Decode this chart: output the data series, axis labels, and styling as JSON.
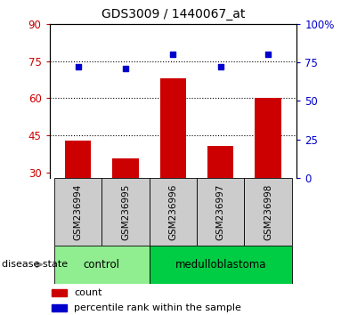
{
  "title": "GDS3009 / 1440067_at",
  "samples": [
    "GSM236994",
    "GSM236995",
    "GSM236996",
    "GSM236997",
    "GSM236998"
  ],
  "bar_values": [
    43,
    36,
    68,
    41,
    60
  ],
  "scatter_values": [
    72,
    71,
    80,
    72,
    80
  ],
  "bar_color": "#cc0000",
  "scatter_color": "#0000cc",
  "ylim_left": [
    28,
    90
  ],
  "ylim_right": [
    0,
    100
  ],
  "yticks_left": [
    30,
    45,
    60,
    75,
    90
  ],
  "yticks_right": [
    0,
    25,
    50,
    75,
    100
  ],
  "yticklabels_right": [
    "0",
    "25",
    "50",
    "75",
    "100%"
  ],
  "hlines": [
    75,
    60,
    45
  ],
  "groups": [
    {
      "label": "control",
      "indices": [
        0,
        1
      ],
      "color": "#90EE90"
    },
    {
      "label": "medulloblastoma",
      "indices": [
        2,
        3,
        4
      ],
      "color": "#00cc44"
    }
  ],
  "disease_state_label": "disease state",
  "legend_bar_label": "count",
  "legend_scatter_label": "percentile rank within the sample",
  "sample_label_color": "#cccccc",
  "bar_bottom": 28
}
